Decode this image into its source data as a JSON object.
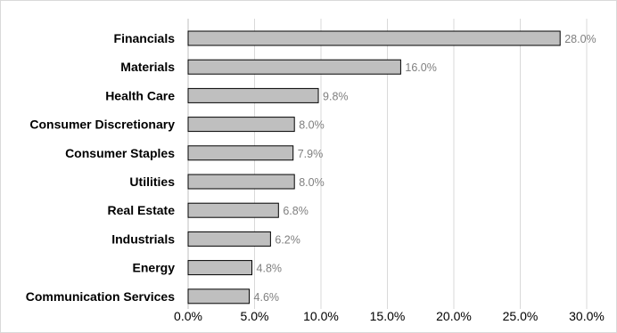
{
  "chart_data": {
    "type": "bar",
    "orientation": "horizontal",
    "categories": [
      "Financials",
      "Materials",
      "Health Care",
      "Consumer Discretionary",
      "Consumer Staples",
      "Utilities",
      "Real Estate",
      "Industrials",
      "Energy",
      "Communication Services"
    ],
    "values": [
      28.0,
      16.0,
      9.8,
      8.0,
      7.9,
      8.0,
      6.8,
      6.2,
      4.8,
      4.6
    ],
    "value_labels": [
      "28.0%",
      "16.0%",
      "9.8%",
      "8.0%",
      "7.9%",
      "8.0%",
      "6.8%",
      "6.2%",
      "4.8%",
      "4.6%"
    ],
    "xlim": [
      0,
      30
    ],
    "x_ticks": [
      0,
      5,
      10,
      15,
      20,
      25,
      30
    ],
    "x_tick_labels": [
      "0.0%",
      "5.0%",
      "10.0%",
      "15.0%",
      "20.0%",
      "25.0%",
      "30.0%"
    ],
    "title": "",
    "xlabel": "",
    "ylabel": "",
    "grid": "vertical",
    "legend": "none",
    "bar_color": "#bfbfbf",
    "bar_edge_color": "#000000",
    "value_label_color": "#7f7f7f"
  }
}
